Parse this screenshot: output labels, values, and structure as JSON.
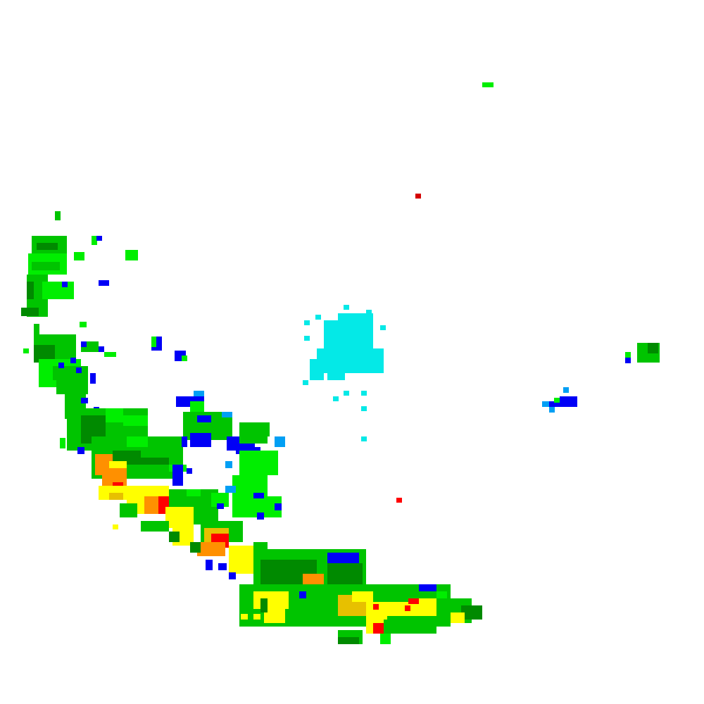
{
  "map": {
    "background": "#ffffff",
    "palette": {
      "lg": "#00ee00",
      "g": "#00c400",
      "dg": "#008a00",
      "y": "#ffff00",
      "gold": "#e7c000",
      "o": "#ff9000",
      "r": "#ff0000",
      "dr": "#d40000",
      "b": "#0000f6",
      "lb": "#019ff4",
      "c": "#04e9e7"
    }
  }
}
